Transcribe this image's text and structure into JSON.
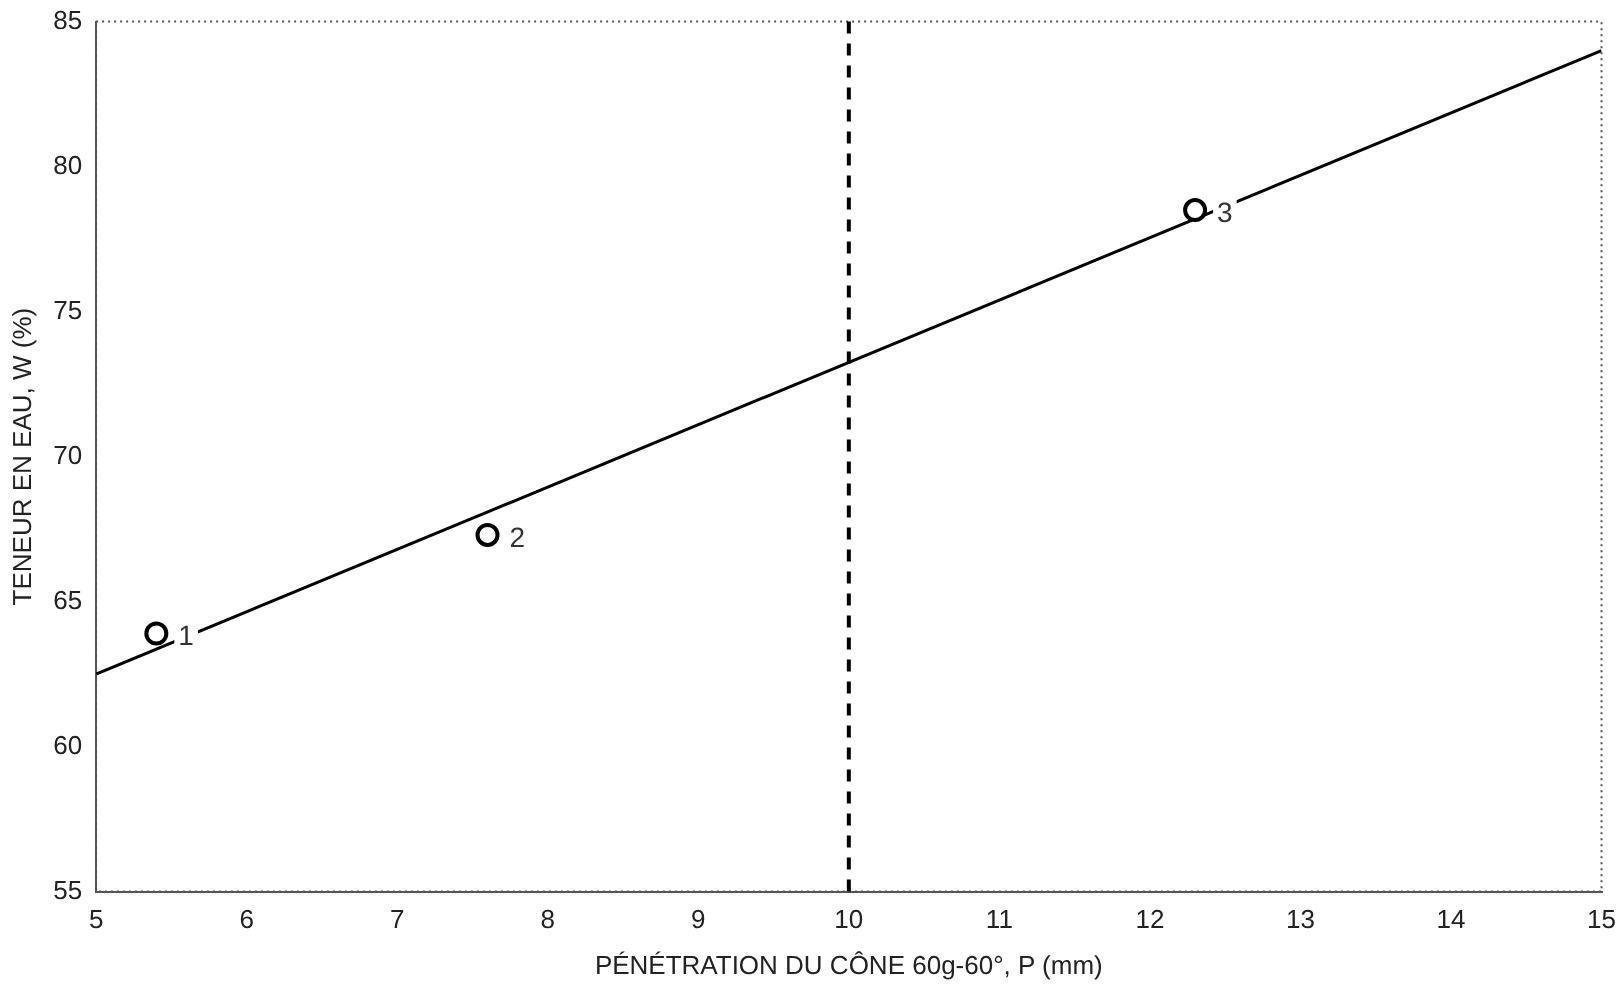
{
  "chart_data": {
    "type": "scatter",
    "xlabel": "PÉNÉTRATION DU CÔNE 60g-60°, P (mm)",
    "ylabel": "TENEUR EN EAU, W (%)",
    "xlim": [
      5,
      15
    ],
    "xticks": [
      5,
      6,
      7,
      8,
      9,
      10,
      11,
      12,
      13,
      14,
      15
    ],
    "ylim": [
      55,
      85
    ],
    "yticks": [
      55,
      60,
      65,
      70,
      75,
      80,
      85
    ],
    "grid": false,
    "legend": false,
    "series": [
      {
        "color": "#000000",
        "marker": "circle",
        "x": [
          5.4,
          7.6,
          12.3
        ],
        "values": [
          63.9,
          67.3,
          78.5
        ]
      },
      {
        "type": "line",
        "color": "#000000",
        "x": [
          5,
          15
        ],
        "values": [
          62.5,
          84.0
        ],
        "line_style": "solid"
      }
    ],
    "ref_lines": [
      {
        "axis": "x",
        "value": 10,
        "color": "#000000",
        "line_style": "dashed"
      }
    ],
    "annotations": [
      {
        "text": "1",
        "x": 5.4,
        "y": 63.9
      },
      {
        "text": "2",
        "x": 7.6,
        "y": 67.3
      },
      {
        "text": "3",
        "x": 12.3,
        "y": 78.5
      }
    ]
  }
}
